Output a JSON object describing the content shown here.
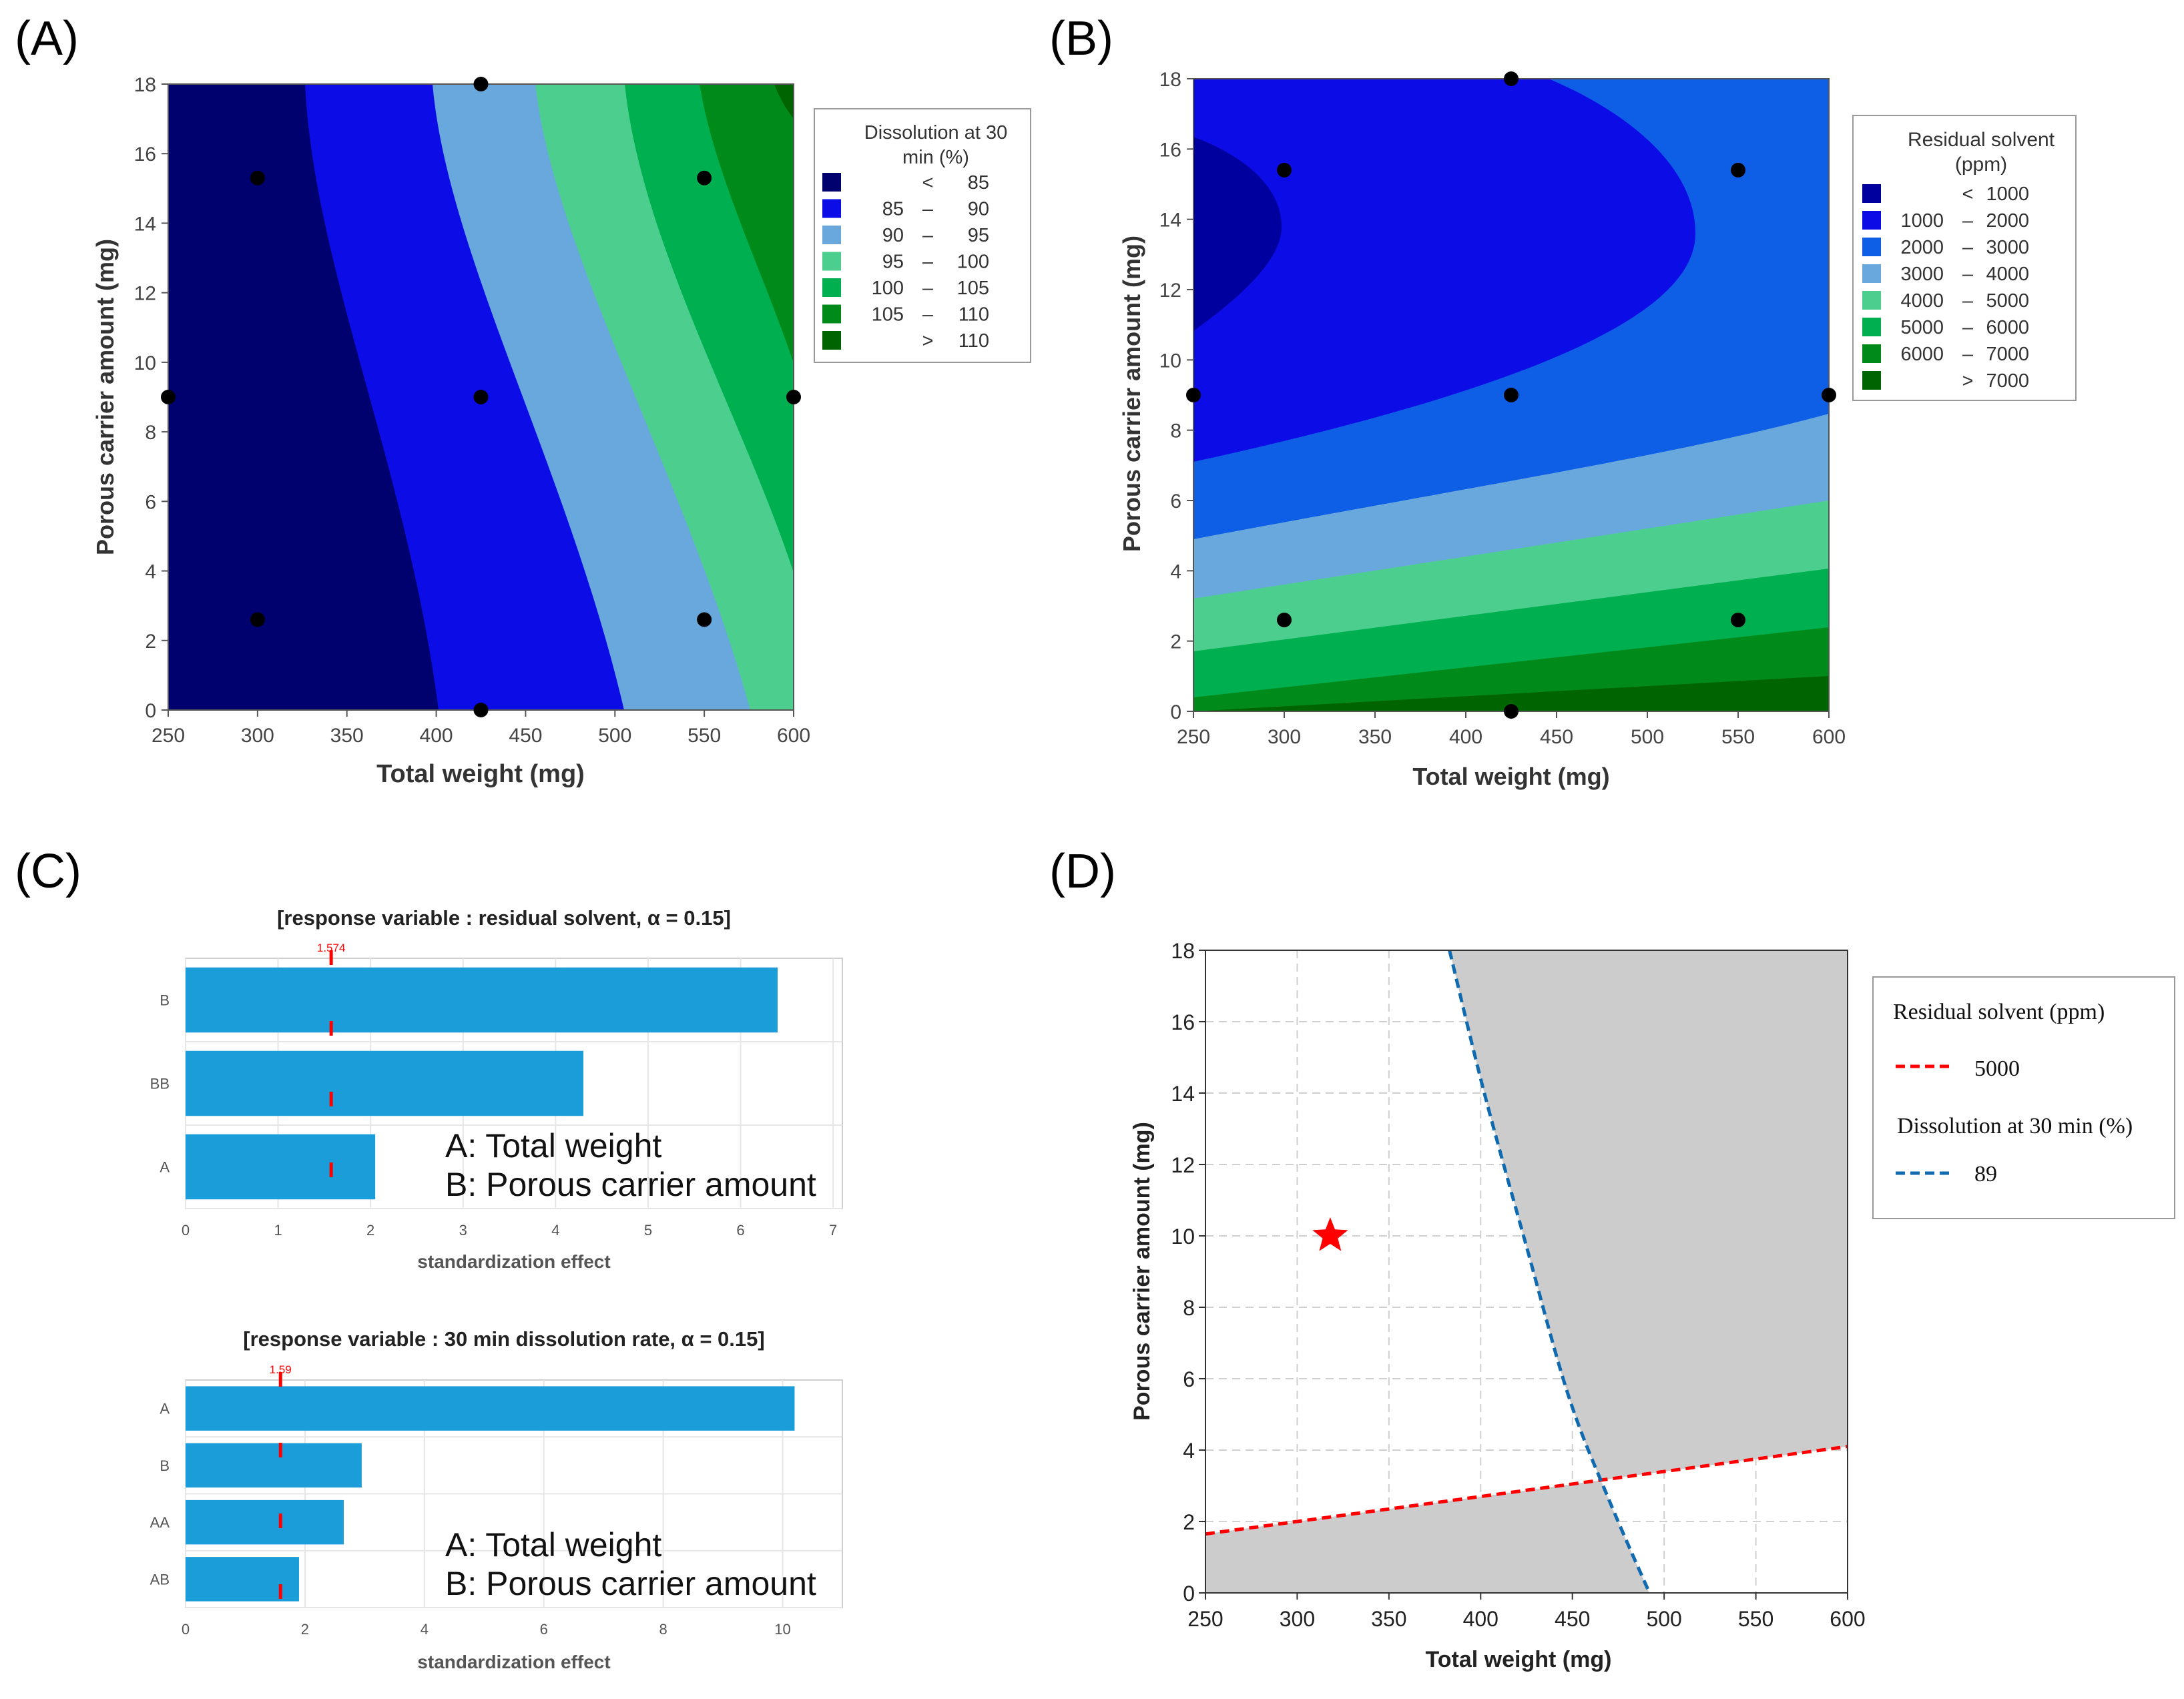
{
  "figure": {
    "panel_labels": [
      "(A)",
      "(B)",
      "(C)",
      "(D)"
    ],
    "colors": {
      "navy": "#00006e",
      "blue": "#0c0ce6",
      "royal": "#0f5fe6",
      "lightblue": "#69a8dc",
      "mint": "#4ccf8e",
      "green": "#00b050",
      "dkgreen": "#008a1a",
      "vdkgreen": "#006400",
      "bar": "#1a9dd9",
      "ref": "#ff0000",
      "gray": "#cccccc",
      "dash_blue": "#0f6aaf"
    }
  },
  "chart_data": [
    {
      "id": "A",
      "type": "contour",
      "xlabel": "Total weight (mg)",
      "ylabel": "Porous carrier amount (mg)",
      "xlim": [
        250,
        600
      ],
      "ylim": [
        0,
        18
      ],
      "xticks": [
        "250",
        "300",
        "350",
        "400",
        "450",
        "500",
        "550",
        "600"
      ],
      "yticks": [
        "0",
        "2",
        "4",
        "6",
        "8",
        "10",
        "12",
        "14",
        "16",
        "18"
      ],
      "contour_boundaries": [
        {
          "level": 85,
          "y_values": [
            0,
            18
          ],
          "x_values": [
            405,
            328
          ]
        },
        {
          "level": 90,
          "y_values": [
            0,
            18
          ],
          "x_values": [
            508,
            400
          ]
        },
        {
          "level": 95,
          "y_values": [
            0,
            18
          ],
          "x_values": [
            575,
            458
          ]
        },
        {
          "level": 100,
          "y_values": [
            0,
            4,
            18
          ],
          "x_values": [
            600,
            600,
            512
          ]
        },
        {
          "level": 105,
          "y_values": [
            10,
            18
          ],
          "x_values": [
            600,
            558
          ]
        },
        {
          "level": 110,
          "y_values": [
            17,
            18
          ],
          "x_values": [
            600,
            594
          ]
        }
      ],
      "design_points": [
        [
          300,
          15.3
        ],
        [
          425,
          18
        ],
        [
          550,
          15.3
        ],
        [
          250,
          9
        ],
        [
          425,
          9
        ],
        [
          600,
          9
        ],
        [
          300,
          2.6
        ],
        [
          550,
          2.6
        ],
        [
          425,
          0
        ]
      ],
      "legend": {
        "title": "Dissolution at 30 min (%)",
        "title_lines": [
          "Dissolution at 30",
          "min (%)"
        ],
        "entries": [
          {
            "lo": "",
            "op": "<",
            "hi": "85"
          },
          {
            "lo": "85",
            "op": "–",
            "hi": "90"
          },
          {
            "lo": "90",
            "op": "–",
            "hi": "95"
          },
          {
            "lo": "95",
            "op": "–",
            "hi": "100"
          },
          {
            "lo": "100",
            "op": "–",
            "hi": "105"
          },
          {
            "lo": "105",
            "op": "–",
            "hi": "110"
          },
          {
            "lo": "",
            "op": ">",
            "hi": "110"
          }
        ]
      }
    },
    {
      "id": "B",
      "type": "contour",
      "xlabel": "Total weight (mg)",
      "ylabel": "Porous carrier amount (mg)",
      "xlim": [
        250,
        600
      ],
      "ylim": [
        0,
        18
      ],
      "xticks": [
        "250",
        "300",
        "350",
        "400",
        "450",
        "500",
        "550",
        "600"
      ],
      "yticks": [
        "0",
        "2",
        "4",
        "6",
        "8",
        "10",
        "12",
        "14",
        "16",
        "18"
      ],
      "contour_boundaries": [
        {
          "level": 1000,
          "region_x_max": 302,
          "y_range": [
            10.8,
            16.4
          ]
        },
        {
          "level": 2000,
          "region_x_max": 525,
          "y_range": [
            7.1,
            18
          ]
        },
        {
          "level": 3000,
          "y_values_at_x250_x600": [
            4.9,
            9.0
          ]
        },
        {
          "level": 4000,
          "y_values_at_x250_x600": [
            3.2,
            6.0
          ]
        },
        {
          "level": 5000,
          "y_values_at_x250_x600": [
            1.7,
            4.1
          ]
        },
        {
          "level": 6000,
          "y_values_at_x250_x600": [
            0.4,
            2.4
          ]
        },
        {
          "level": 7000,
          "y_values_at_x250_x600": [
            0.0,
            1.0
          ]
        }
      ],
      "design_points": [
        [
          300,
          15.4
        ],
        [
          425,
          18
        ],
        [
          550,
          15.4
        ],
        [
          250,
          9
        ],
        [
          425,
          9
        ],
        [
          600,
          9
        ],
        [
          300,
          2.6
        ],
        [
          550,
          2.6
        ],
        [
          425,
          0
        ]
      ],
      "legend": {
        "title": "Residual solvent (ppm)",
        "title_lines": [
          "Residual solvent",
          "(ppm)"
        ],
        "entries": [
          {
            "lo": "",
            "op": "<",
            "hi": "1000"
          },
          {
            "lo": "1000",
            "op": "–",
            "hi": "2000"
          },
          {
            "lo": "2000",
            "op": "–",
            "hi": "3000"
          },
          {
            "lo": "3000",
            "op": "–",
            "hi": "4000"
          },
          {
            "lo": "4000",
            "op": "–",
            "hi": "5000"
          },
          {
            "lo": "5000",
            "op": "–",
            "hi": "6000"
          },
          {
            "lo": "6000",
            "op": "–",
            "hi": "7000"
          },
          {
            "lo": "",
            "op": ">",
            "hi": "7000"
          }
        ]
      }
    },
    {
      "id": "C1",
      "type": "bar",
      "orientation": "horizontal",
      "title": "[response variable : residual solvent, α = 0.15]",
      "xlabel": "standardization effect",
      "categories": [
        "B",
        "BB",
        "A"
      ],
      "values": [
        6.4,
        4.3,
        2.05
      ],
      "xlim": [
        0,
        7.1
      ],
      "xticks": [
        "0",
        "1",
        "2",
        "3",
        "4",
        "5",
        "6",
        "7"
      ],
      "ref_value": 1.574,
      "ref_label": "1.574",
      "annotation": [
        "A: Total weight",
        "B: Porous carrier amount"
      ]
    },
    {
      "id": "C2",
      "type": "bar",
      "orientation": "horizontal",
      "title": "[response variable : 30 min dissolution rate, α = 0.15]",
      "xlabel": "standardization effect",
      "categories": [
        "A",
        "B",
        "AA",
        "AB"
      ],
      "values": [
        10.2,
        2.95,
        2.65,
        1.9
      ],
      "xlim": [
        0,
        11.0
      ],
      "xticks": [
        "0",
        "2",
        "4",
        "6",
        "8",
        "10"
      ],
      "ref_value": 1.59,
      "ref_label": "1.59",
      "annotation": [
        "A: Total weight",
        "B: Porous carrier amount"
      ]
    },
    {
      "id": "D",
      "type": "overlaid_contour",
      "xlabel": "Total weight (mg)",
      "ylabel": "Porous carrier amount (mg)",
      "xlim": [
        250,
        600
      ],
      "ylim": [
        0,
        18
      ],
      "xticks": [
        "250",
        "300",
        "350",
        "400",
        "450",
        "500",
        "550",
        "600"
      ],
      "yticks": [
        "0",
        "2",
        "4",
        "6",
        "8",
        "10",
        "12",
        "14",
        "16",
        "18"
      ],
      "grid": true,
      "residual_line": {
        "x": [
          250,
          600
        ],
        "y": [
          1.65,
          4.1
        ]
      },
      "dissolution_line": {
        "x": [
          383,
          402,
          425,
          448,
          470,
          492
        ],
        "y": [
          18,
          14,
          9.7,
          5.5,
          2.6,
          0
        ]
      },
      "optimum_point": [
        318,
        10
      ],
      "legend": {
        "title1": "Residual solvent (ppm)",
        "entry1": "5000",
        "title2": "Dissolution at 30 min (%)",
        "entry2": "89"
      }
    }
  ]
}
